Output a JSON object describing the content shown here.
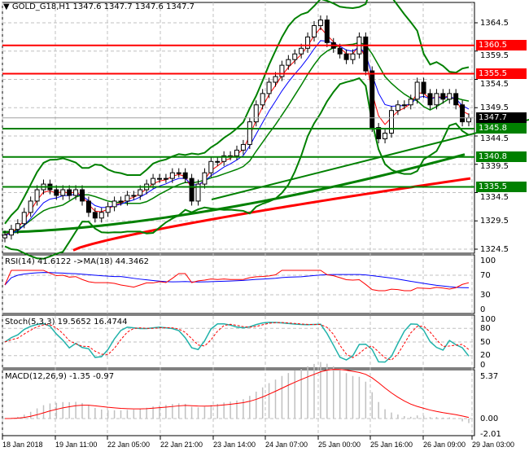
{
  "header": {
    "symbol": "GOLD_G18,H1",
    "ohlc": "1347.6 1347.7 1347.6 1347.7",
    "menu_icon": "triangle-down-icon"
  },
  "price_axis": {
    "ticks": [
      "1364.5",
      "1359.5",
      "1354.5",
      "1349.5",
      "1344.5",
      "1339.5",
      "1334.5",
      "1329.5",
      "1324.5"
    ]
  },
  "levels": [
    {
      "label": "1360.5",
      "price": 1360.5,
      "color": "#ff0000"
    },
    {
      "label": "1355.5",
      "price": 1355.5,
      "color": "#ff0000"
    },
    {
      "label": "1345.8",
      "price": 1345.8,
      "color": "#008000"
    },
    {
      "label": "1340.8",
      "price": 1340.8,
      "color": "#008000"
    },
    {
      "label": "1335.5",
      "price": 1335.5,
      "color": "#008000"
    }
  ],
  "current_price": {
    "label": "1347.7",
    "price": 1347.7,
    "color": "#000000"
  },
  "rsi": {
    "title": "RSI(14) 41.6122  ->MA(18) 44.3462",
    "ticks": [
      "100",
      "70",
      "30",
      "0"
    ]
  },
  "stoch": {
    "title": "Stoch(5,3,3) 19.5652 16.4744",
    "ticks": [
      "100",
      "80",
      "50",
      "20",
      "0"
    ]
  },
  "macd": {
    "title": "MACD(12,26,9) -1.35 -0.97",
    "ticks": [
      "5.37",
      "0.00",
      "-2.01"
    ]
  },
  "time_axis": {
    "labels": [
      "18 Jan 2018",
      "19 Jan 11:00",
      "22 Jan 05:00",
      "22 Jan 21:00",
      "23 Jan 14:00",
      "24 Jan 07:00",
      "25 Jan 00:00",
      "25 Jan 16:00",
      "26 Jan 09:00",
      "29 Jan 03:00"
    ]
  },
  "chart_data": {
    "type": "candlestick",
    "ylim": [
      1323,
      1367
    ],
    "closes": [
      1327,
      1328,
      1329,
      1331,
      1333,
      1335,
      1336,
      1335,
      1334,
      1335,
      1334,
      1335,
      1333,
      1331,
      1330,
      1331,
      1332,
      1333,
      1333,
      1334,
      1334,
      1335,
      1336,
      1337,
      1337,
      1337,
      1338,
      1338,
      1337,
      1333,
      1336,
      1338,
      1340,
      1340,
      1341,
      1341,
      1342,
      1343,
      1347,
      1350,
      1352,
      1354,
      1355,
      1357,
      1358,
      1359,
      1360,
      1362,
      1364,
      1365,
      1361,
      1360,
      1359,
      1358,
      1359,
      1362,
      1356,
      1346,
      1344,
      1345,
      1349,
      1350,
      1350,
      1351,
      1354,
      1352,
      1350,
      1352,
      1351,
      1352,
      1350,
      1347,
      1347.7
    ],
    "ma_red_range": [
      1324.3,
      1337
    ],
    "ma_green_range": [
      1327.5,
      1341.5
    ]
  },
  "colors": {
    "bull": "#ffffff",
    "bear": "#000000",
    "ma_red": "#ff0000",
    "ma_green": "#008000",
    "rsi": "#ff0000",
    "rsi_ma": "#0000ff",
    "stoch_main": "#20b2aa",
    "stoch_signal": "#ff0000",
    "macd_hist": "#c0c0c0",
    "macd_signal": "#ff0000"
  }
}
